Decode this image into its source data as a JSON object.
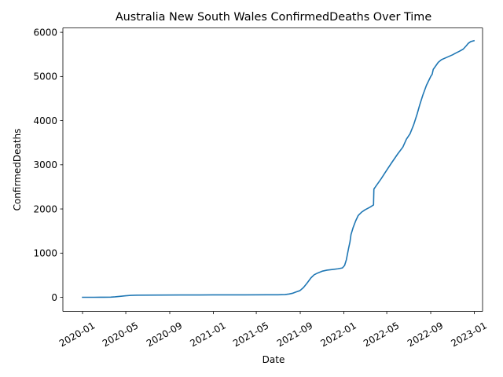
{
  "chart_data": {
    "type": "line",
    "title": "Australia New South Wales ConfirmedDeaths Over Time",
    "xlabel": "Date",
    "ylabel": "ConfirmedDeaths",
    "grid": false,
    "legend": "none",
    "xlim": [
      "2019-11-07",
      "2023-01-24"
    ],
    "ylim": [
      -320,
      6100
    ],
    "x_ticks": [
      {
        "date": "2020-01-01",
        "label": "2020-01"
      },
      {
        "date": "2020-05-01",
        "label": "2020-05"
      },
      {
        "date": "2020-09-01",
        "label": "2020-09"
      },
      {
        "date": "2021-01-01",
        "label": "2021-01"
      },
      {
        "date": "2021-05-01",
        "label": "2021-05"
      },
      {
        "date": "2021-09-01",
        "label": "2021-09"
      },
      {
        "date": "2022-01-01",
        "label": "2022-01"
      },
      {
        "date": "2022-05-01",
        "label": "2022-05"
      },
      {
        "date": "2022-09-01",
        "label": "2022-09"
      },
      {
        "date": "2023-01-01",
        "label": "2023-01"
      }
    ],
    "y_ticks": [
      {
        "value": 0,
        "label": "0"
      },
      {
        "value": 1000,
        "label": "1000"
      },
      {
        "value": 2000,
        "label": "2000"
      },
      {
        "value": 3000,
        "label": "3000"
      },
      {
        "value": 4000,
        "label": "4000"
      },
      {
        "value": 5000,
        "label": "5000"
      },
      {
        "value": 6000,
        "label": "6000"
      }
    ],
    "series": [
      {
        "color": "#1f77b4",
        "points": [
          [
            "2020-01-01",
            0
          ],
          [
            "2020-02-01",
            0
          ],
          [
            "2020-03-01",
            1
          ],
          [
            "2020-03-20",
            4
          ],
          [
            "2020-04-01",
            10
          ],
          [
            "2020-04-15",
            22
          ],
          [
            "2020-05-01",
            35
          ],
          [
            "2020-05-15",
            44
          ],
          [
            "2020-06-01",
            47
          ],
          [
            "2020-08-01",
            50
          ],
          [
            "2020-10-01",
            52
          ],
          [
            "2021-01-01",
            54
          ],
          [
            "2021-04-01",
            55
          ],
          [
            "2021-06-01",
            56
          ],
          [
            "2021-07-01",
            57
          ],
          [
            "2021-07-20",
            62
          ],
          [
            "2021-08-01",
            75
          ],
          [
            "2021-08-10",
            90
          ],
          [
            "2021-08-20",
            120
          ],
          [
            "2021-08-31",
            150
          ],
          [
            "2021-09-10",
            220
          ],
          [
            "2021-09-20",
            320
          ],
          [
            "2021-10-01",
            440
          ],
          [
            "2021-10-10",
            510
          ],
          [
            "2021-10-20",
            550
          ],
          [
            "2021-11-01",
            590
          ],
          [
            "2021-11-15",
            615
          ],
          [
            "2021-12-01",
            630
          ],
          [
            "2021-12-15",
            645
          ],
          [
            "2021-12-28",
            665
          ],
          [
            "2022-01-03",
            720
          ],
          [
            "2022-01-08",
            850
          ],
          [
            "2022-01-14",
            1100
          ],
          [
            "2022-01-18",
            1250
          ],
          [
            "2022-01-21",
            1420
          ],
          [
            "2022-01-27",
            1580
          ],
          [
            "2022-02-03",
            1730
          ],
          [
            "2022-02-10",
            1850
          ],
          [
            "2022-02-20",
            1930
          ],
          [
            "2022-03-01",
            1980
          ],
          [
            "2022-03-15",
            2040
          ],
          [
            "2022-03-25",
            2090
          ],
          [
            "2022-03-26",
            2450
          ],
          [
            "2022-04-01",
            2520
          ],
          [
            "2022-04-15",
            2680
          ],
          [
            "2022-05-01",
            2880
          ],
          [
            "2022-05-15",
            3050
          ],
          [
            "2022-06-01",
            3250
          ],
          [
            "2022-06-15",
            3400
          ],
          [
            "2022-06-25",
            3580
          ],
          [
            "2022-07-05",
            3700
          ],
          [
            "2022-07-15",
            3900
          ],
          [
            "2022-07-25",
            4150
          ],
          [
            "2022-08-01",
            4350
          ],
          [
            "2022-08-10",
            4580
          ],
          [
            "2022-08-20",
            4800
          ],
          [
            "2022-09-01",
            5000
          ],
          [
            "2022-09-05",
            5050
          ],
          [
            "2022-09-08",
            5160
          ],
          [
            "2022-09-15",
            5240
          ],
          [
            "2022-09-22",
            5320
          ],
          [
            "2022-10-01",
            5380
          ],
          [
            "2022-10-15",
            5430
          ],
          [
            "2022-11-01",
            5490
          ],
          [
            "2022-11-10",
            5530
          ],
          [
            "2022-11-20",
            5570
          ],
          [
            "2022-12-01",
            5620
          ],
          [
            "2022-12-10",
            5700
          ],
          [
            "2022-12-15",
            5750
          ],
          [
            "2022-12-22",
            5790
          ],
          [
            "2022-12-31",
            5810
          ]
        ]
      }
    ]
  }
}
